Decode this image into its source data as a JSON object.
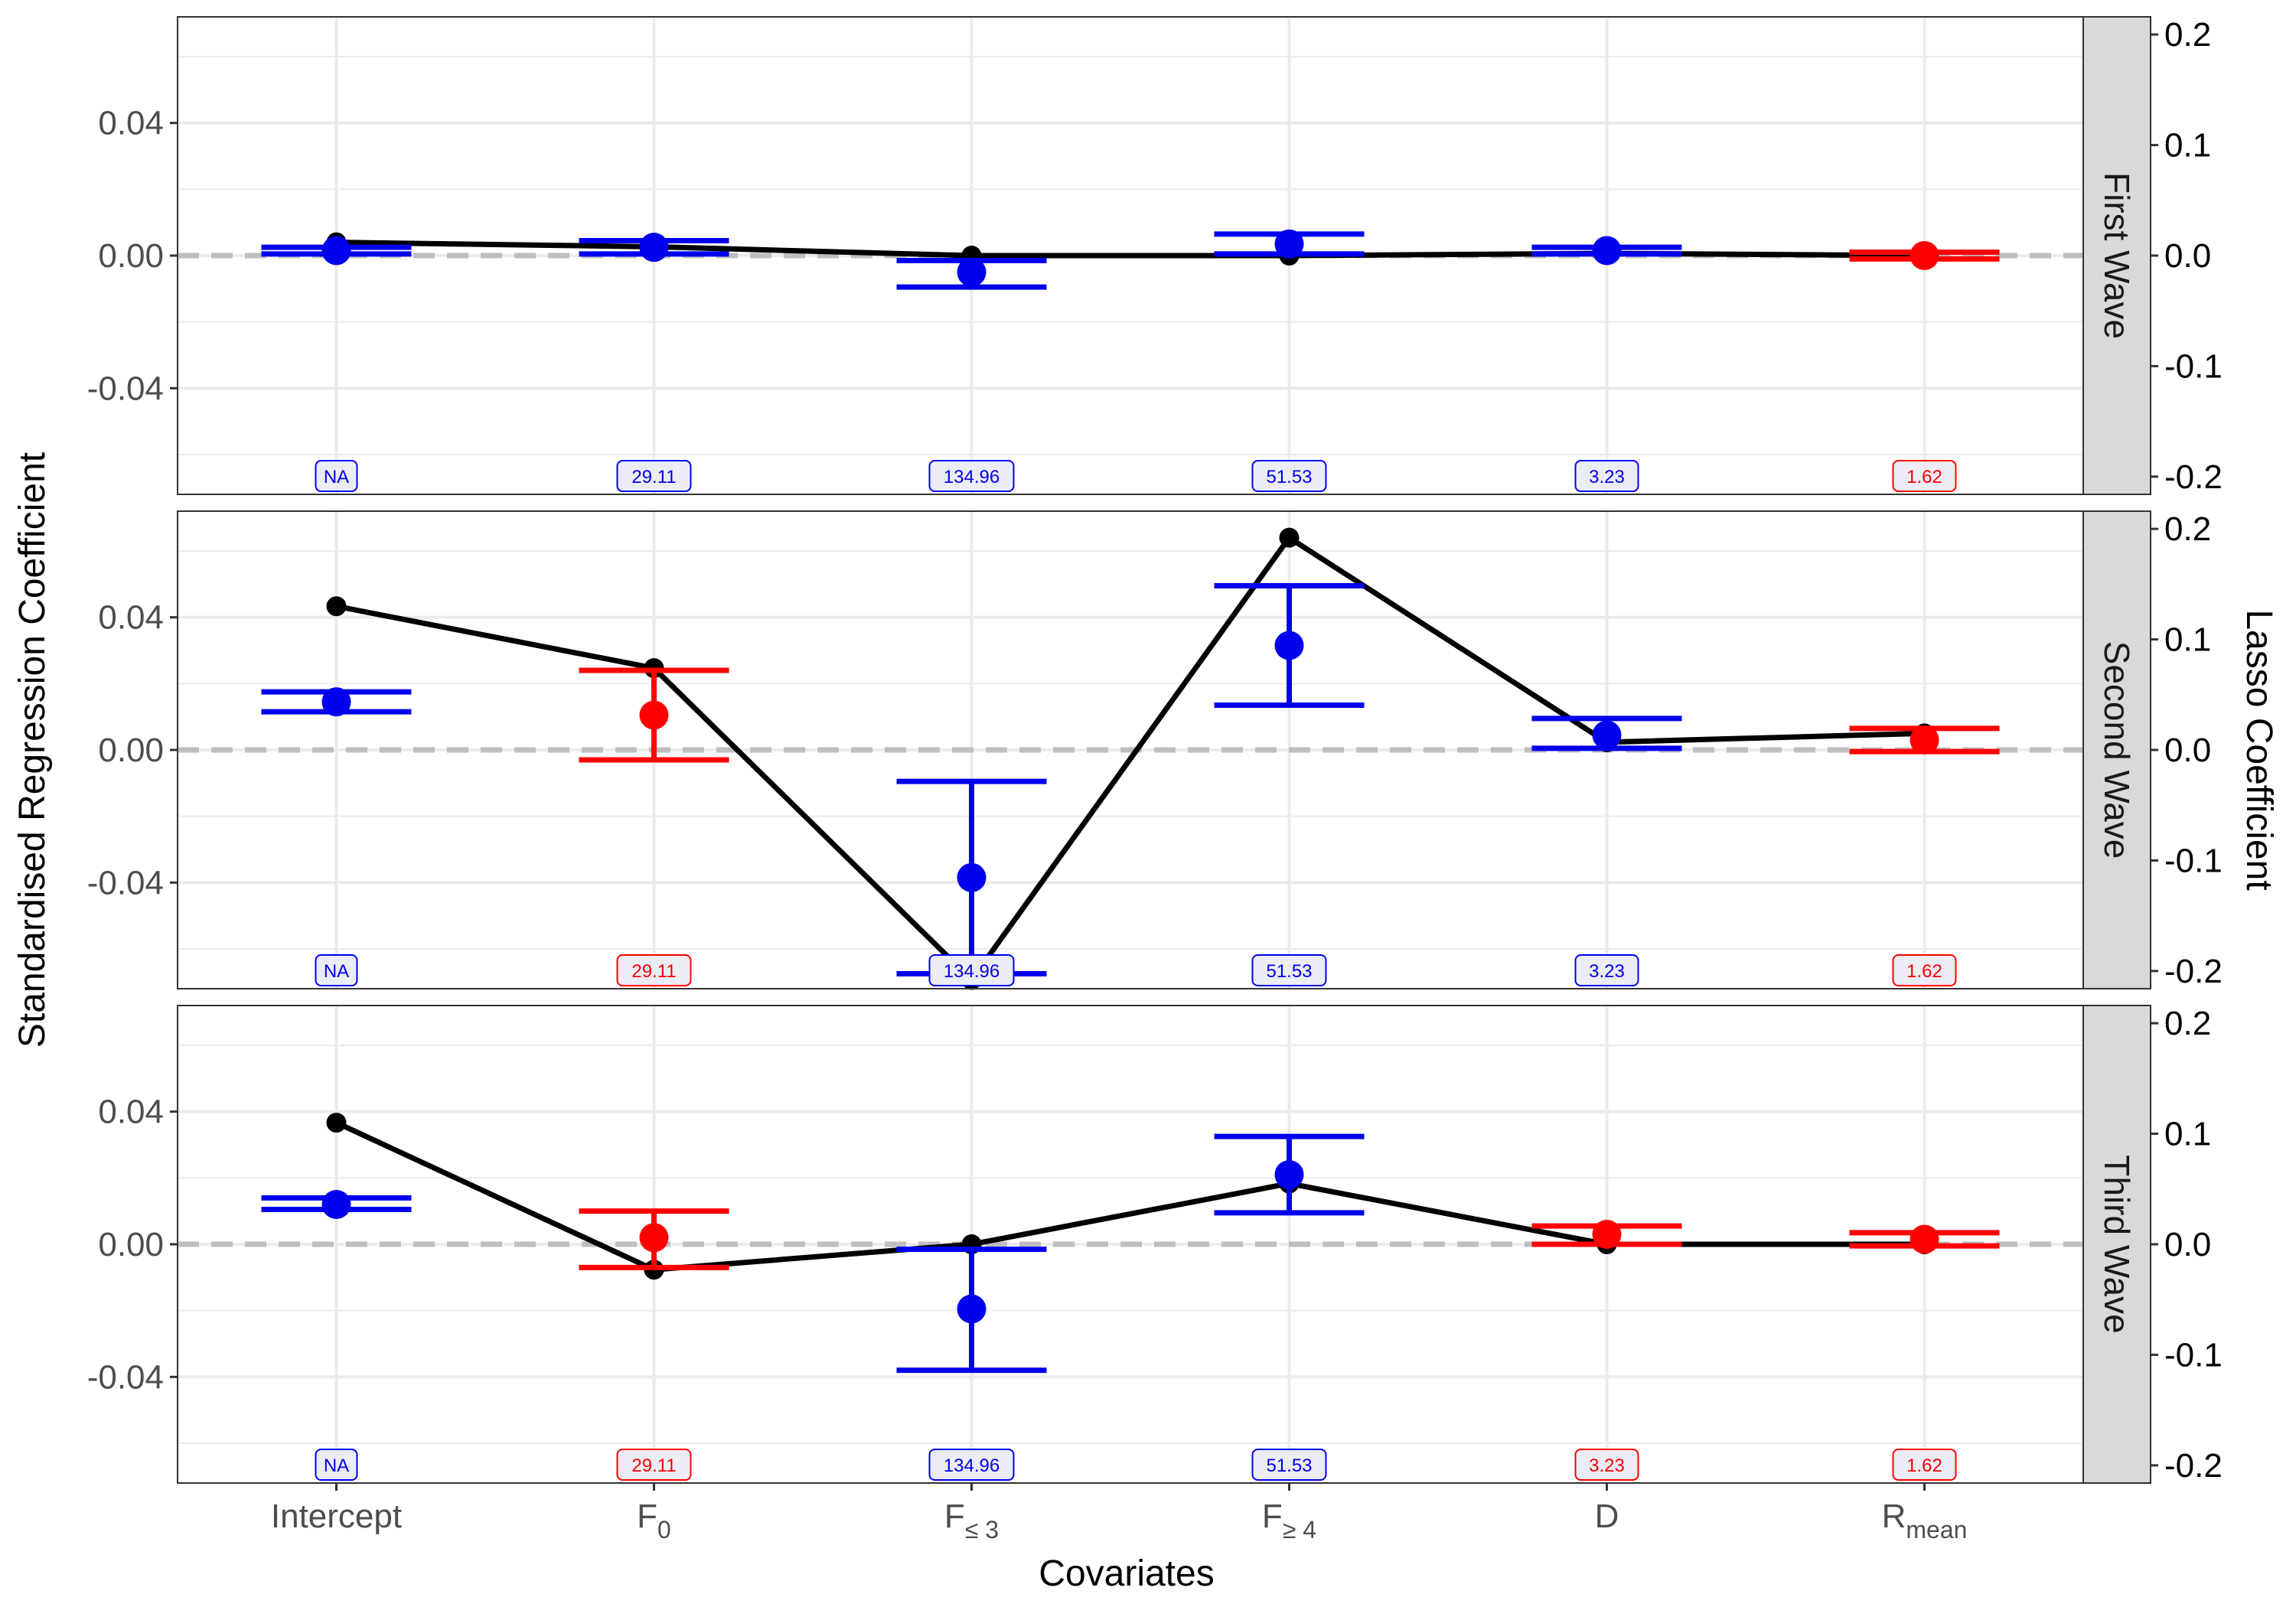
{
  "chart_data": {
    "type": "errorbar",
    "xlabel": "Covariates",
    "ylabel": "Standardised Regression Coefficient",
    "y2label": "Lasso Coefficient",
    "categories": [
      {
        "main": "Intercept",
        "sub": ""
      },
      {
        "main": "F",
        "sub": "0"
      },
      {
        "main": "F",
        "sub": "≤ 3"
      },
      {
        "main": "F",
        "sub": "≥ 4"
      },
      {
        "main": "D",
        "sub": ""
      },
      {
        "main": "R",
        "sub": "mean"
      }
    ],
    "ylim": [
      -0.072,
      0.072
    ],
    "y_ticks": [
      "0.04",
      "0.00",
      "-0.04"
    ],
    "y_tick_values": [
      0.04,
      0,
      -0.04
    ],
    "y2lim": [
      -0.216,
      0.216
    ],
    "y2_ticks": [
      "0.2",
      "0.1",
      "0.0",
      "-0.1",
      "-0.2"
    ],
    "y2_tick_values": [
      0.2,
      0.1,
      0,
      -0.1,
      -0.2
    ],
    "grid": true,
    "reference_line": 0,
    "colors": {
      "blue": "#0000ee",
      "red": "#ff0000",
      "lasso": "#000000",
      "reference": "#bebebe",
      "strip_bg": "#d9d9d9",
      "grid": "#ebebeb"
    },
    "panels": [
      {
        "label": "First Wave",
        "estimates": [
          {
            "value": 0.0015,
            "lower": 0.0005,
            "upper": 0.0025,
            "color": "blue"
          },
          {
            "value": 0.0025,
            "lower": 0.0005,
            "upper": 0.0045,
            "color": "blue"
          },
          {
            "value": -0.005,
            "lower": -0.0095,
            "upper": -0.0015,
            "color": "blue"
          },
          {
            "value": 0.0035,
            "lower": 0.0005,
            "upper": 0.0065,
            "color": "blue"
          },
          {
            "value": 0.0015,
            "lower": 0.0005,
            "upper": 0.0025,
            "color": "blue"
          },
          {
            "value": 0.0,
            "lower": -0.001,
            "upper": 0.001,
            "color": "red"
          }
        ],
        "lasso": [
          0.012,
          0.008,
          0.0,
          0.0,
          0.002,
          0.0
        ],
        "badges": [
          {
            "text": "NA",
            "color": "blue"
          },
          {
            "text": "29.11",
            "color": "blue"
          },
          {
            "text": "134.96",
            "color": "blue"
          },
          {
            "text": "51.53",
            "color": "blue"
          },
          {
            "text": "3.23",
            "color": "blue"
          },
          {
            "text": "1.62",
            "color": "red"
          }
        ]
      },
      {
        "label": "Second Wave",
        "estimates": [
          {
            "value": 0.0145,
            "lower": 0.0115,
            "upper": 0.0175,
            "color": "blue"
          },
          {
            "value": 0.0105,
            "lower": -0.003,
            "upper": 0.024,
            "color": "red"
          },
          {
            "value": -0.0385,
            "lower": -0.0675,
            "upper": -0.0095,
            "color": "blue"
          },
          {
            "value": 0.0315,
            "lower": 0.0135,
            "upper": 0.0495,
            "color": "blue"
          },
          {
            "value": 0.0045,
            "lower": 0.0005,
            "upper": 0.0095,
            "color": "blue"
          },
          {
            "value": 0.003,
            "lower": -0.0005,
            "upper": 0.0065,
            "color": "red"
          }
        ],
        "lasso": [
          0.13,
          0.074,
          -0.208,
          0.192,
          0.007,
          0.015
        ],
        "badges": [
          {
            "text": "NA",
            "color": "blue"
          },
          {
            "text": "29.11",
            "color": "red"
          },
          {
            "text": "134.96",
            "color": "blue"
          },
          {
            "text": "51.53",
            "color": "blue"
          },
          {
            "text": "3.23",
            "color": "blue"
          },
          {
            "text": "1.62",
            "color": "red"
          }
        ]
      },
      {
        "label": "Third Wave",
        "estimates": [
          {
            "value": 0.012,
            "lower": 0.0105,
            "upper": 0.014,
            "color": "blue"
          },
          {
            "value": 0.002,
            "lower": -0.007,
            "upper": 0.01,
            "color": "red"
          },
          {
            "value": -0.0195,
            "lower": -0.038,
            "upper": -0.0015,
            "color": "blue"
          },
          {
            "value": 0.021,
            "lower": 0.0095,
            "upper": 0.0325,
            "color": "blue"
          },
          {
            "value": 0.003,
            "lower": 0.0,
            "upper": 0.0055,
            "color": "red"
          },
          {
            "value": 0.0015,
            "lower": -0.0005,
            "upper": 0.0035,
            "color": "red"
          }
        ],
        "lasso": [
          0.11,
          -0.023,
          0.0,
          0.055,
          0.0,
          0.0
        ],
        "badges": [
          {
            "text": "NA",
            "color": "blue"
          },
          {
            "text": "29.11",
            "color": "red"
          },
          {
            "text": "134.96",
            "color": "blue"
          },
          {
            "text": "51.53",
            "color": "blue"
          },
          {
            "text": "3.23",
            "color": "red"
          },
          {
            "text": "1.62",
            "color": "red"
          }
        ]
      }
    ]
  }
}
